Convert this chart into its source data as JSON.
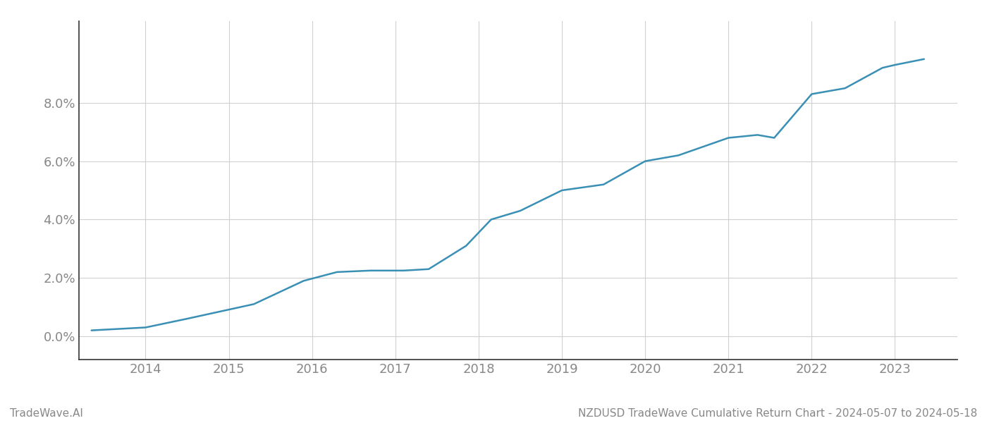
{
  "x_years": [
    2013.35,
    2014.0,
    2014.5,
    2015.3,
    2015.9,
    2016.3,
    2016.7,
    2017.1,
    2017.4,
    2017.85,
    2018.15,
    2018.5,
    2019.0,
    2019.5,
    2020.0,
    2020.4,
    2021.0,
    2021.35,
    2021.55,
    2022.0,
    2022.4,
    2022.85,
    2023.0,
    2023.35
  ],
  "y_values": [
    0.002,
    0.003,
    0.006,
    0.011,
    0.019,
    0.022,
    0.0225,
    0.0225,
    0.023,
    0.031,
    0.04,
    0.043,
    0.05,
    0.052,
    0.06,
    0.062,
    0.068,
    0.069,
    0.068,
    0.083,
    0.085,
    0.092,
    0.093,
    0.095
  ],
  "line_color": "#3a8fb5",
  "line_width": 1.8,
  "background_color": "#ffffff",
  "grid_color": "#d0d0d0",
  "tick_label_color": "#888888",
  "xlabel_years": [
    2014,
    2015,
    2016,
    2017,
    2018,
    2019,
    2020,
    2021,
    2022,
    2023
  ],
  "yticks": [
    0.0,
    0.02,
    0.04,
    0.06,
    0.08
  ],
  "ylim": [
    -0.008,
    0.108
  ],
  "xlim": [
    2013.2,
    2023.75
  ],
  "footer_left": "TradeWave.AI",
  "footer_right": "NZDUSD TradeWave Cumulative Return Chart - 2024-05-07 to 2024-05-18",
  "footer_color": "#888888",
  "footer_fontsize": 11,
  "tick_fontsize": 13
}
